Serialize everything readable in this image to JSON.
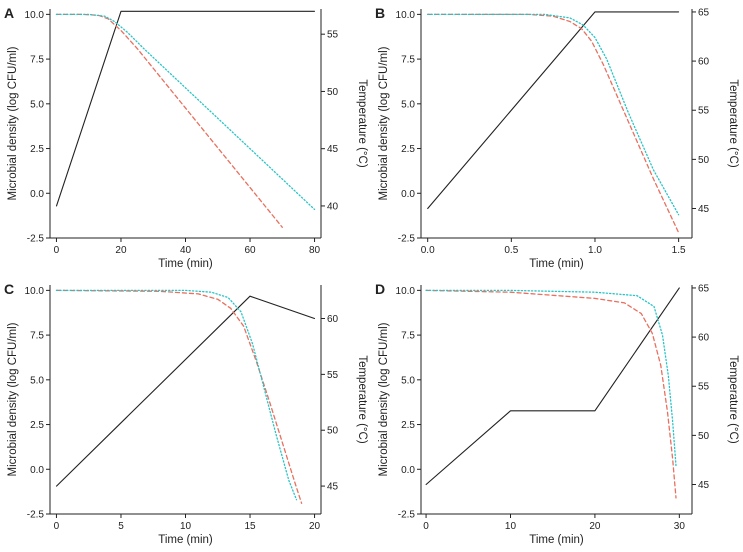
{
  "chart_data": [
    {
      "panel": "A",
      "type": "line",
      "xlabel": "Time (min)",
      "ylabel": "Microbial density (log CFU/ml)",
      "y2label": "Temperature (°C)",
      "xlim": [
        -2,
        82
      ],
      "ylim": [
        -2.5,
        10.3
      ],
      "y2lim": [
        37.2,
        57.2
      ],
      "xticks": [
        0,
        20,
        40,
        60,
        80
      ],
      "yticks": [
        -2.5,
        0.0,
        2.5,
        5.0,
        7.5,
        10.0
      ],
      "y2ticks": [
        40,
        45,
        50,
        55
      ],
      "series": [
        {
          "name": "temperature",
          "axis": "right",
          "color": "#222222",
          "style": "solid",
          "x": [
            0,
            20,
            80
          ],
          "y": [
            40,
            57,
            57
          ]
        },
        {
          "name": "red",
          "axis": "left",
          "color": "#e8705f",
          "style": "dashed",
          "x": [
            0,
            8,
            13,
            16,
            20,
            25,
            70
          ],
          "y": [
            10,
            10,
            9.95,
            9.75,
            9.1,
            8.1,
            -1.9
          ]
        },
        {
          "name": "cyan",
          "axis": "left",
          "color": "#27c4c7",
          "style": "dotted",
          "x": [
            0,
            10,
            15,
            18,
            22,
            27,
            80
          ],
          "y": [
            10,
            10,
            9.9,
            9.6,
            9.0,
            8.1,
            -0.9
          ]
        }
      ]
    },
    {
      "panel": "B",
      "type": "line",
      "xlabel": "Time (min)",
      "ylabel": "Microbial density (log CFU/ml)",
      "y2label": "Temperature (°C)",
      "xlim": [
        -0.04,
        1.58
      ],
      "ylim": [
        -2.5,
        10.3
      ],
      "y2lim": [
        42.0,
        65.3
      ],
      "xticks": [
        0.0,
        0.5,
        1.0,
        1.5
      ],
      "yticks": [
        -2.5,
        0.0,
        2.5,
        5.0,
        7.5,
        10.0
      ],
      "y2ticks": [
        45,
        50,
        55,
        60,
        65
      ],
      "series": [
        {
          "name": "temperature",
          "axis": "right",
          "color": "#222222",
          "style": "solid",
          "x": [
            0,
            1.0,
            1.5
          ],
          "y": [
            45,
            65,
            65
          ]
        },
        {
          "name": "red",
          "axis": "left",
          "color": "#e8705f",
          "style": "dashed",
          "x": [
            0,
            0.6,
            0.75,
            0.85,
            0.92,
            0.98,
            1.05,
            1.2,
            1.35,
            1.5
          ],
          "y": [
            10,
            10,
            9.9,
            9.6,
            9.2,
            8.5,
            7.2,
            4.0,
            0.8,
            -2.2
          ]
        },
        {
          "name": "cyan",
          "axis": "left",
          "color": "#27c4c7",
          "style": "dotted",
          "x": [
            0,
            0.7,
            0.85,
            0.93,
            1.0,
            1.07,
            1.2,
            1.35,
            1.5
          ],
          "y": [
            10,
            10,
            9.8,
            9.4,
            8.7,
            7.5,
            4.5,
            1.3,
            -1.2
          ]
        }
      ]
    },
    {
      "panel": "C",
      "type": "line",
      "xlabel": "Time (min)",
      "ylabel": "Microbial density (log CFU/ml)",
      "y2label": "Temperature (°C)",
      "xlim": [
        -0.5,
        20.5
      ],
      "ylim": [
        -2.5,
        10.3
      ],
      "y2lim": [
        42.5,
        63.0
      ],
      "xticks": [
        0,
        5,
        10,
        15,
        20
      ],
      "yticks": [
        -2.5,
        0.0,
        2.5,
        5.0,
        7.5,
        10.0
      ],
      "y2ticks": [
        45,
        50,
        55,
        60
      ],
      "series": [
        {
          "name": "temperature",
          "axis": "right",
          "color": "#222222",
          "style": "solid",
          "x": [
            0,
            15,
            20
          ],
          "y": [
            45,
            62,
            60
          ]
        },
        {
          "name": "red",
          "axis": "left",
          "color": "#e8705f",
          "style": "dashed",
          "x": [
            0,
            8,
            11,
            12.5,
            13.5,
            14.5,
            15.5,
            16.5,
            17.5,
            18.5,
            19
          ],
          "y": [
            10,
            9.95,
            9.8,
            9.5,
            9.0,
            8.0,
            6.0,
            3.8,
            1.5,
            -0.8,
            -1.9
          ]
        },
        {
          "name": "cyan",
          "axis": "left",
          "color": "#27c4c7",
          "style": "dotted",
          "x": [
            0,
            10,
            12,
            13.3,
            14.3,
            15.2,
            16.1,
            17,
            18,
            18.6
          ],
          "y": [
            10,
            10,
            9.9,
            9.6,
            8.8,
            7.0,
            4.5,
            2.0,
            -0.6,
            -1.7
          ]
        }
      ]
    },
    {
      "panel": "D",
      "type": "line",
      "xlabel": "Time (min)",
      "ylabel": "Microbial density (log CFU/ml)",
      "y2label": "Temperature (°C)",
      "xlim": [
        -0.6,
        31.5
      ],
      "ylim": [
        -2.5,
        10.3
      ],
      "y2lim": [
        42.0,
        65.3
      ],
      "xticks": [
        0,
        10,
        20,
        30
      ],
      "yticks": [
        -2.5,
        0.0,
        2.5,
        5.0,
        7.5,
        10.0
      ],
      "y2ticks": [
        45,
        50,
        55,
        60,
        65
      ],
      "series": [
        {
          "name": "temperature",
          "axis": "right",
          "color": "#222222",
          "style": "solid",
          "x": [
            0,
            10,
            20,
            30
          ],
          "y": [
            45,
            52.5,
            52.5,
            65
          ]
        },
        {
          "name": "red",
          "axis": "left",
          "color": "#e8705f",
          "style": "dashed",
          "x": [
            0,
            10,
            20,
            23.5,
            25.5,
            26.8,
            27.8,
            28.6,
            29.2,
            29.6
          ],
          "y": [
            10,
            9.9,
            9.55,
            9.3,
            8.7,
            7.6,
            5.8,
            3.2,
            0.6,
            -1.6
          ]
        },
        {
          "name": "cyan",
          "axis": "left",
          "color": "#27c4c7",
          "style": "dotted",
          "x": [
            0,
            10,
            20,
            25,
            27,
            28,
            28.7,
            29.2,
            29.6
          ],
          "y": [
            10,
            10,
            9.9,
            9.7,
            9.1,
            7.5,
            5.2,
            2.7,
            0.2
          ]
        }
      ]
    }
  ]
}
